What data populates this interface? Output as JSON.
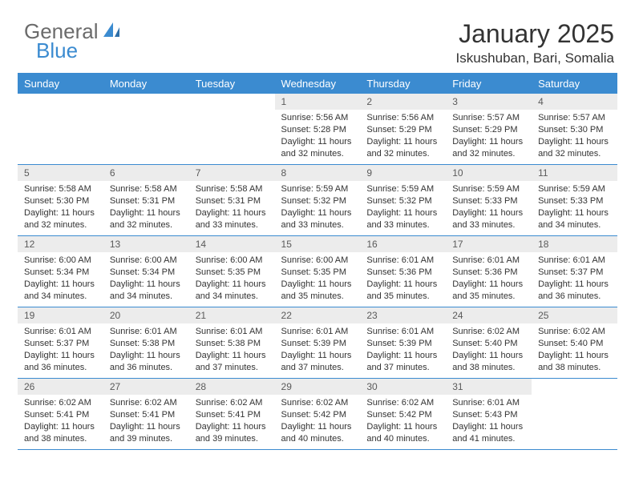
{
  "logo": {
    "text_a": "General",
    "text_b": "Blue",
    "icon_color": "#3b8bd0"
  },
  "header": {
    "title": "January 2025",
    "location": "Iskushuban, Bari, Somalia"
  },
  "colors": {
    "accent": "#3b8bd0",
    "day_header_bg": "#ececec",
    "text": "#333333"
  },
  "weekdays": [
    "Sunday",
    "Monday",
    "Tuesday",
    "Wednesday",
    "Thursday",
    "Friday",
    "Saturday"
  ],
  "labels": {
    "sunrise": "Sunrise:",
    "sunset": "Sunset:",
    "daylight_prefix": "Daylight:",
    "hours_word": "hours",
    "and_word": "and",
    "minutes_word": "minutes."
  },
  "grid": [
    [
      null,
      null,
      null,
      {
        "n": "1",
        "sr": "5:56 AM",
        "ss": "5:28 PM",
        "dh": "11",
        "dm": "32"
      },
      {
        "n": "2",
        "sr": "5:56 AM",
        "ss": "5:29 PM",
        "dh": "11",
        "dm": "32"
      },
      {
        "n": "3",
        "sr": "5:57 AM",
        "ss": "5:29 PM",
        "dh": "11",
        "dm": "32"
      },
      {
        "n": "4",
        "sr": "5:57 AM",
        "ss": "5:30 PM",
        "dh": "11",
        "dm": "32"
      }
    ],
    [
      {
        "n": "5",
        "sr": "5:58 AM",
        "ss": "5:30 PM",
        "dh": "11",
        "dm": "32"
      },
      {
        "n": "6",
        "sr": "5:58 AM",
        "ss": "5:31 PM",
        "dh": "11",
        "dm": "32"
      },
      {
        "n": "7",
        "sr": "5:58 AM",
        "ss": "5:31 PM",
        "dh": "11",
        "dm": "33"
      },
      {
        "n": "8",
        "sr": "5:59 AM",
        "ss": "5:32 PM",
        "dh": "11",
        "dm": "33"
      },
      {
        "n": "9",
        "sr": "5:59 AM",
        "ss": "5:32 PM",
        "dh": "11",
        "dm": "33"
      },
      {
        "n": "10",
        "sr": "5:59 AM",
        "ss": "5:33 PM",
        "dh": "11",
        "dm": "33"
      },
      {
        "n": "11",
        "sr": "5:59 AM",
        "ss": "5:33 PM",
        "dh": "11",
        "dm": "34"
      }
    ],
    [
      {
        "n": "12",
        "sr": "6:00 AM",
        "ss": "5:34 PM",
        "dh": "11",
        "dm": "34"
      },
      {
        "n": "13",
        "sr": "6:00 AM",
        "ss": "5:34 PM",
        "dh": "11",
        "dm": "34"
      },
      {
        "n": "14",
        "sr": "6:00 AM",
        "ss": "5:35 PM",
        "dh": "11",
        "dm": "34"
      },
      {
        "n": "15",
        "sr": "6:00 AM",
        "ss": "5:35 PM",
        "dh": "11",
        "dm": "35"
      },
      {
        "n": "16",
        "sr": "6:01 AM",
        "ss": "5:36 PM",
        "dh": "11",
        "dm": "35"
      },
      {
        "n": "17",
        "sr": "6:01 AM",
        "ss": "5:36 PM",
        "dh": "11",
        "dm": "35"
      },
      {
        "n": "18",
        "sr": "6:01 AM",
        "ss": "5:37 PM",
        "dh": "11",
        "dm": "36"
      }
    ],
    [
      {
        "n": "19",
        "sr": "6:01 AM",
        "ss": "5:37 PM",
        "dh": "11",
        "dm": "36"
      },
      {
        "n": "20",
        "sr": "6:01 AM",
        "ss": "5:38 PM",
        "dh": "11",
        "dm": "36"
      },
      {
        "n": "21",
        "sr": "6:01 AM",
        "ss": "5:38 PM",
        "dh": "11",
        "dm": "37"
      },
      {
        "n": "22",
        "sr": "6:01 AM",
        "ss": "5:39 PM",
        "dh": "11",
        "dm": "37"
      },
      {
        "n": "23",
        "sr": "6:01 AM",
        "ss": "5:39 PM",
        "dh": "11",
        "dm": "37"
      },
      {
        "n": "24",
        "sr": "6:02 AM",
        "ss": "5:40 PM",
        "dh": "11",
        "dm": "38"
      },
      {
        "n": "25",
        "sr": "6:02 AM",
        "ss": "5:40 PM",
        "dh": "11",
        "dm": "38"
      }
    ],
    [
      {
        "n": "26",
        "sr": "6:02 AM",
        "ss": "5:41 PM",
        "dh": "11",
        "dm": "38"
      },
      {
        "n": "27",
        "sr": "6:02 AM",
        "ss": "5:41 PM",
        "dh": "11",
        "dm": "39"
      },
      {
        "n": "28",
        "sr": "6:02 AM",
        "ss": "5:41 PM",
        "dh": "11",
        "dm": "39"
      },
      {
        "n": "29",
        "sr": "6:02 AM",
        "ss": "5:42 PM",
        "dh": "11",
        "dm": "40"
      },
      {
        "n": "30",
        "sr": "6:02 AM",
        "ss": "5:42 PM",
        "dh": "11",
        "dm": "40"
      },
      {
        "n": "31",
        "sr": "6:01 AM",
        "ss": "5:43 PM",
        "dh": "11",
        "dm": "41"
      },
      null
    ]
  ]
}
